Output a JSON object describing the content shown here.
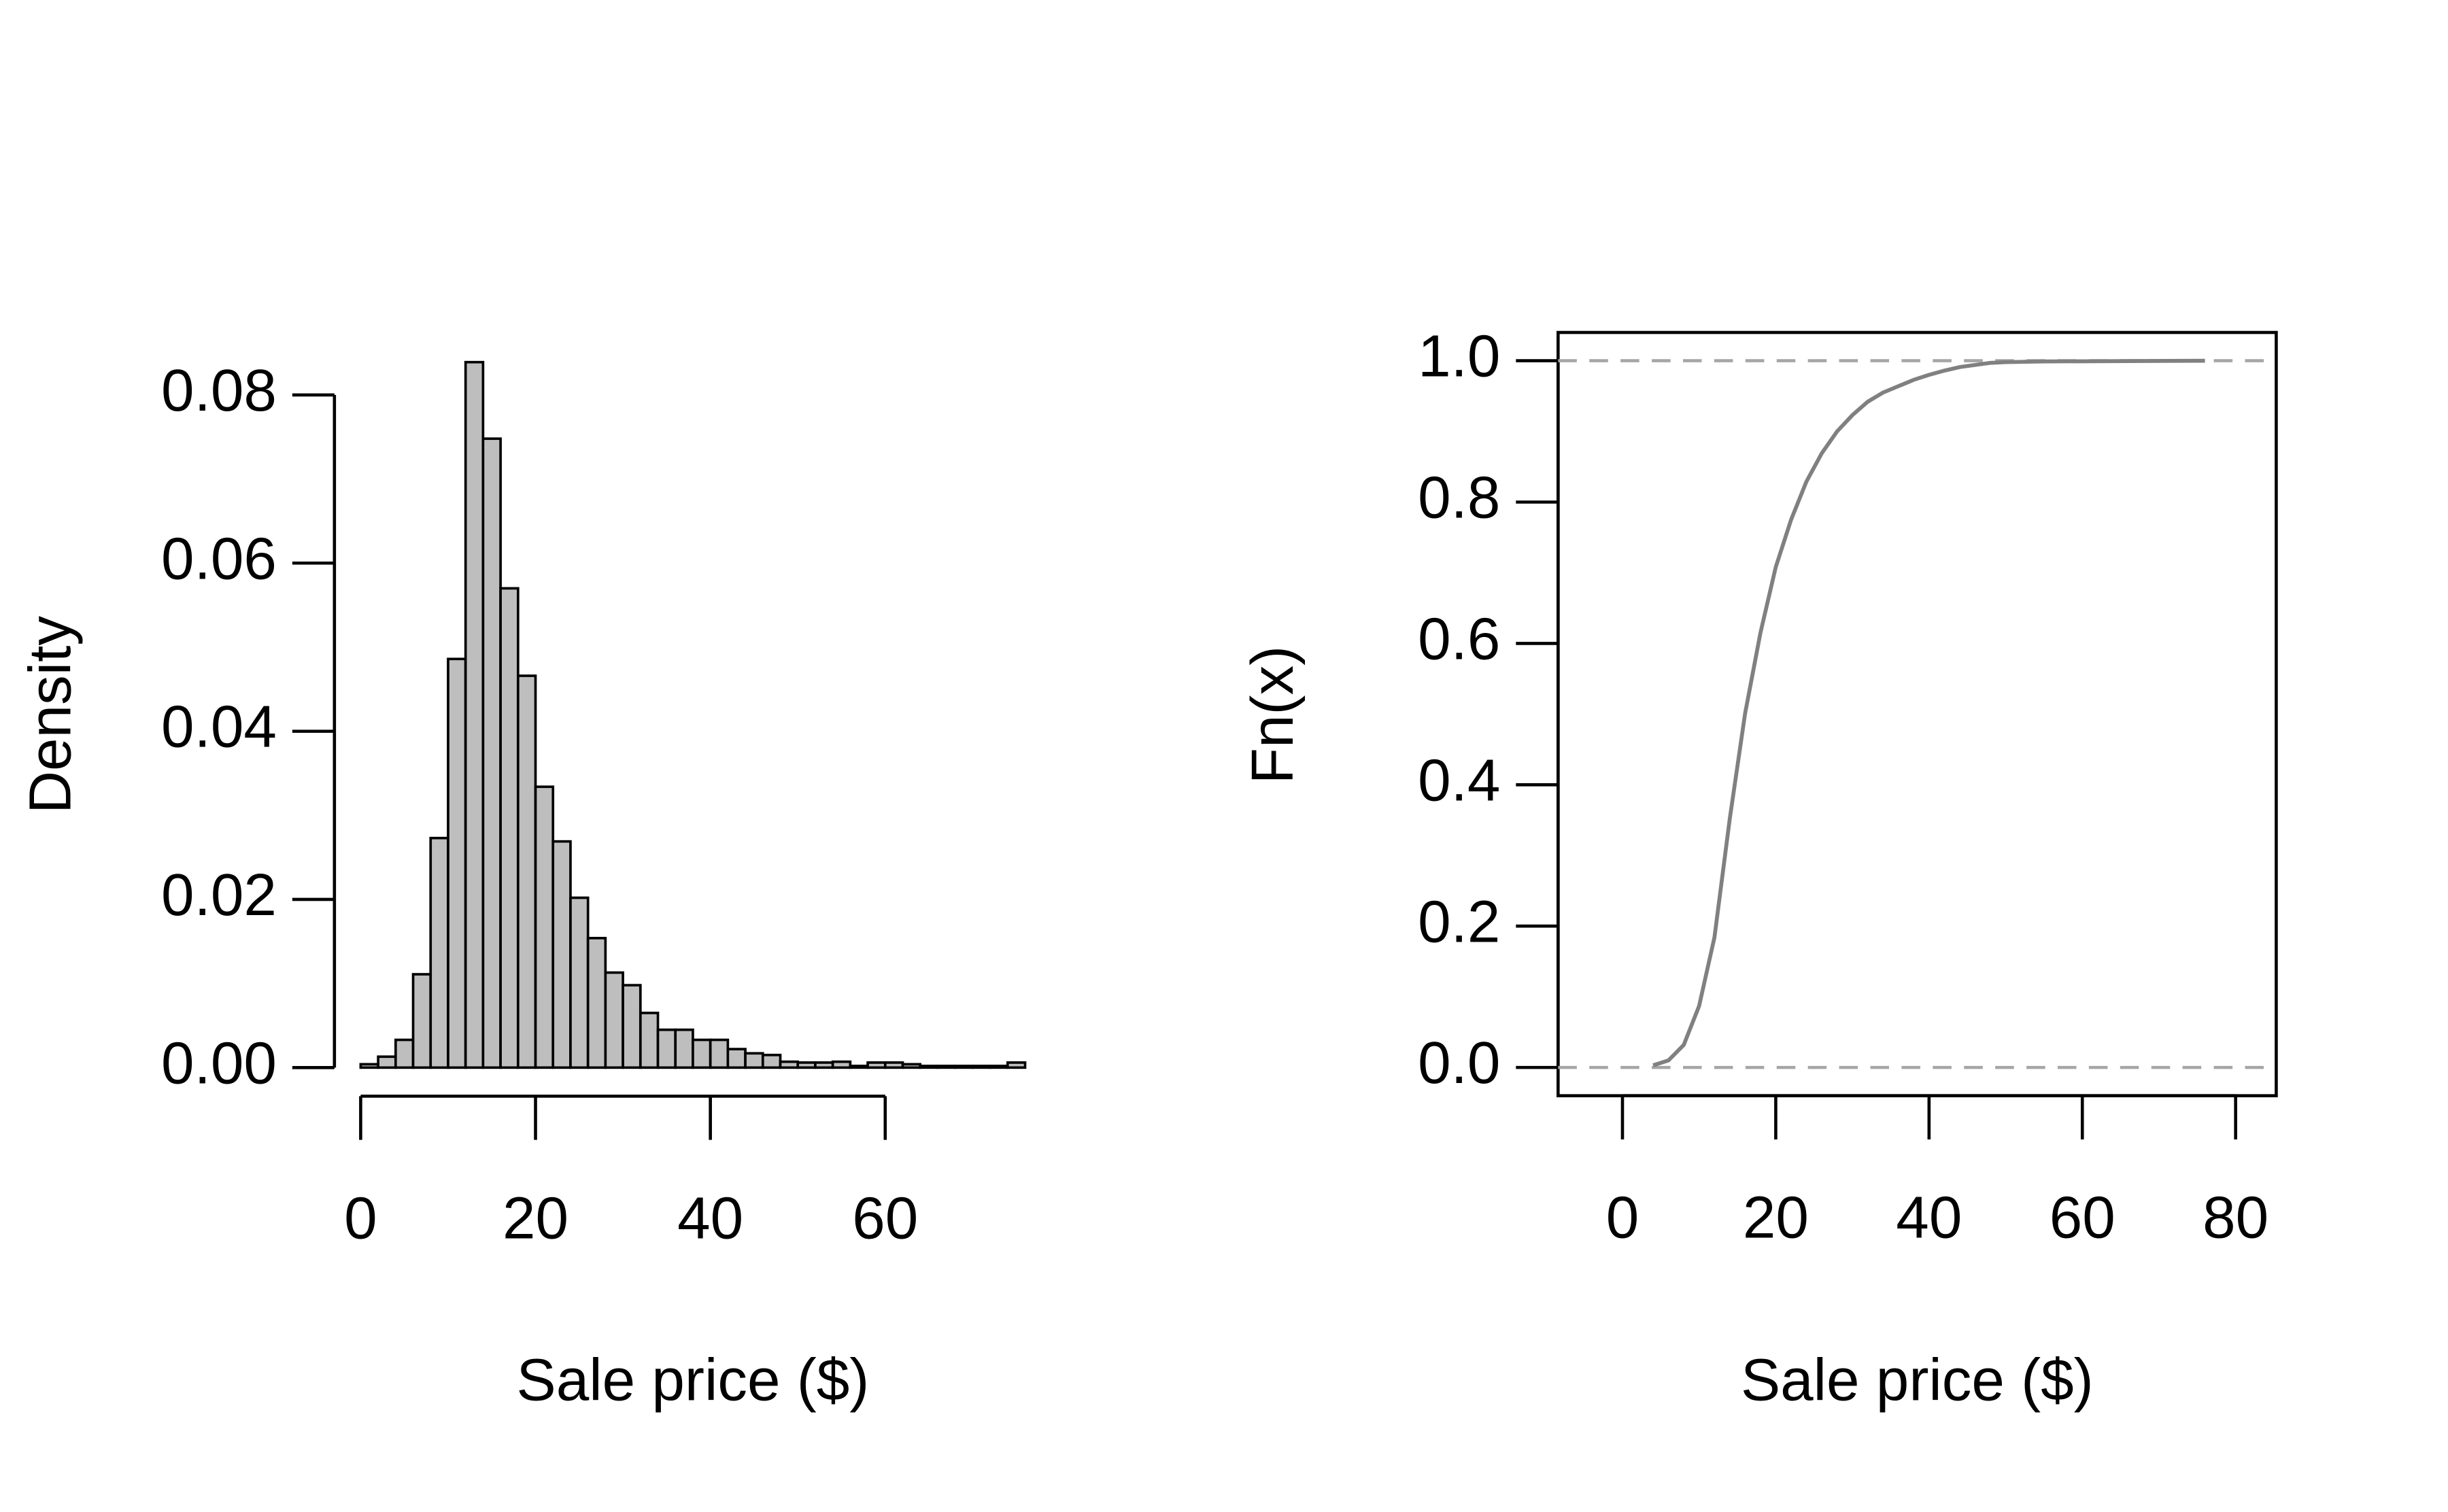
{
  "chart_data": [
    {
      "type": "histogram",
      "y_label": "Density",
      "x_label": "Sale price ($)",
      "color": "#bebebe",
      "bins": [
        0,
        2,
        4,
        6,
        8,
        10,
        12,
        14,
        16,
        18,
        20,
        22,
        24,
        26,
        28,
        30,
        32,
        34,
        36,
        38,
        40,
        42,
        44,
        46,
        48,
        50,
        52,
        54,
        56,
        58,
        60,
        62,
        64,
        66,
        68,
        70,
        72,
        74,
        76
      ],
      "values": [
        0.0004,
        0.0013,
        0.0033,
        0.0111,
        0.0273,
        0.0486,
        0.0839,
        0.0748,
        0.057,
        0.0466,
        0.0334,
        0.0269,
        0.0202,
        0.0154,
        0.0113,
        0.0098,
        0.0065,
        0.0045,
        0.0045,
        0.0033,
        0.0033,
        0.0022,
        0.0017,
        0.0015,
        0.0007,
        0.0006,
        0.0006,
        0.0007,
        0.0002,
        0.0006,
        0.0006,
        0.0004,
        0.0002,
        0.0002,
        0.0002,
        0.0002,
        0.0002,
        0.0006
      ],
      "xlim": [
        -3,
        79
      ],
      "ylim": [
        -0.0034,
        0.0873
      ],
      "xticks": [
        0,
        20,
        40,
        60
      ],
      "yticks": [
        {
          "value": 0,
          "label": "0.00"
        },
        {
          "value": 0.02,
          "label": "0.02"
        },
        {
          "value": 0.04,
          "label": "0.04"
        },
        {
          "value": 0.06,
          "label": "0.06"
        },
        {
          "value": 0.08,
          "label": "0.08"
        }
      ]
    },
    {
      "type": "line",
      "y_label": "Fn(x)",
      "x_label": "Sale price ($)",
      "color": "#808080",
      "hline_color": "#a6a6a6",
      "x": [
        4,
        6,
        8,
        10,
        12,
        14,
        16,
        18,
        20,
        22,
        24,
        26,
        28,
        30,
        32,
        34,
        36,
        38,
        40,
        42,
        44,
        46,
        48,
        50,
        55,
        76
      ],
      "values": [
        0.003,
        0.01,
        0.032,
        0.087,
        0.184,
        0.352,
        0.501,
        0.615,
        0.708,
        0.775,
        0.829,
        0.869,
        0.9,
        0.923,
        0.942,
        0.955,
        0.964,
        0.973,
        0.98,
        0.986,
        0.991,
        0.994,
        0.997,
        0.998,
        0.999,
        1
      ],
      "hlines": [
        0,
        1
      ],
      "box": true,
      "xlim": [
        -8.4,
        85.3
      ],
      "ylim": [
        -0.04,
        1.04
      ],
      "xticks": [
        0,
        20,
        40,
        60,
        80
      ],
      "yticks": [
        {
          "value": 0,
          "label": "0.0"
        },
        {
          "value": 0.2,
          "label": "0.2"
        },
        {
          "value": 0.4,
          "label": "0.4"
        },
        {
          "value": 0.6,
          "label": "0.6"
        },
        {
          "value": 0.8,
          "label": "0.8"
        },
        {
          "value": 1,
          "label": "1.0"
        }
      ]
    }
  ]
}
